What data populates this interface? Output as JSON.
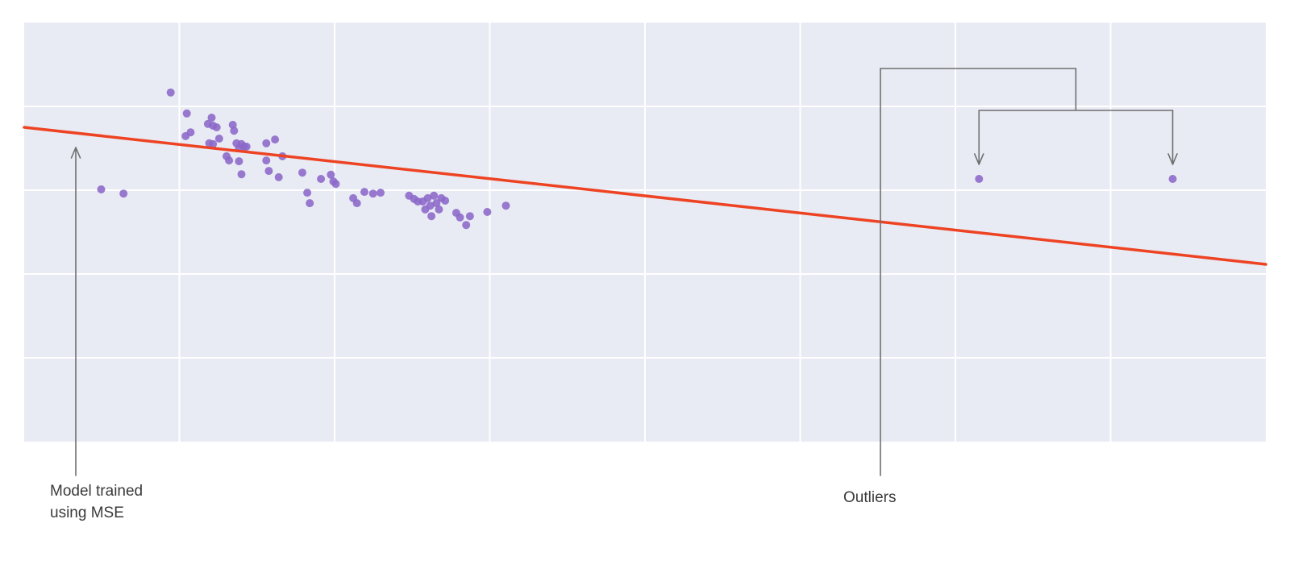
{
  "page": {
    "background": "#ffffff"
  },
  "labels": {
    "mse": "Model trained\nusing MSE",
    "outliers": "Outliers"
  },
  "chart_data": {
    "type": "scatter",
    "title": "",
    "xlabel": "",
    "ylabel": "",
    "axes_labeled": false,
    "xlim": [
      0,
      100
    ],
    "ylim": [
      0,
      100
    ],
    "plot_bg": "#e8ebf4",
    "grid": {
      "on": true,
      "color": "#ffffff",
      "x_interval": 12.5,
      "y_interval": 20
    },
    "legend": "none",
    "annotations": [
      "Model trained using MSE",
      "Outliers"
    ],
    "annotation_color": "#707070",
    "series": [
      {
        "name": "samples",
        "type": "scatter",
        "color": "#8b68c8",
        "marker_radius": 5,
        "points": [
          [
            11.8,
            83.3
          ],
          [
            13.1,
            78.3
          ],
          [
            13.4,
            73.8
          ],
          [
            13.0,
            72.9
          ],
          [
            15.1,
            77.3
          ],
          [
            14.8,
            75.8
          ],
          [
            15.2,
            75.4
          ],
          [
            15.5,
            75.0
          ],
          [
            14.9,
            71.2
          ],
          [
            15.2,
            71.0
          ],
          [
            15.7,
            72.3
          ],
          [
            16.3,
            68.1
          ],
          [
            16.5,
            67.1
          ],
          [
            16.8,
            75.6
          ],
          [
            16.9,
            74.2
          ],
          [
            17.1,
            71.2
          ],
          [
            17.3,
            70.0
          ],
          [
            17.5,
            71.0
          ],
          [
            17.7,
            70.4
          ],
          [
            17.3,
            66.9
          ],
          [
            17.5,
            63.8
          ],
          [
            17.9,
            70.4
          ],
          [
            19.5,
            71.2
          ],
          [
            19.5,
            67.1
          ],
          [
            19.7,
            64.6
          ],
          [
            20.2,
            72.1
          ],
          [
            20.5,
            63.1
          ],
          [
            20.8,
            68.1
          ],
          [
            22.4,
            64.2
          ],
          [
            22.8,
            59.4
          ],
          [
            23.0,
            56.9
          ],
          [
            23.9,
            62.7
          ],
          [
            24.7,
            63.7
          ],
          [
            24.9,
            62.1
          ],
          [
            25.1,
            61.5
          ],
          [
            26.5,
            58.1
          ],
          [
            26.8,
            56.9
          ],
          [
            27.4,
            59.6
          ],
          [
            28.1,
            59.2
          ],
          [
            28.7,
            59.4
          ],
          [
            31.0,
            58.7
          ],
          [
            31.4,
            57.9
          ],
          [
            31.7,
            57.3
          ],
          [
            32.1,
            57.3
          ],
          [
            32.3,
            55.4
          ],
          [
            32.5,
            58.1
          ],
          [
            32.7,
            56.3
          ],
          [
            32.8,
            53.8
          ],
          [
            33.0,
            58.7
          ],
          [
            33.2,
            56.9
          ],
          [
            33.4,
            55.4
          ],
          [
            33.6,
            58.1
          ],
          [
            33.9,
            57.5
          ],
          [
            34.8,
            54.6
          ],
          [
            35.1,
            53.5
          ],
          [
            35.6,
            51.7
          ],
          [
            35.9,
            53.8
          ],
          [
            37.3,
            54.8
          ],
          [
            38.8,
            56.3
          ],
          [
            6.2,
            60.2
          ],
          [
            8.0,
            59.2
          ]
        ]
      },
      {
        "name": "outliers",
        "type": "scatter",
        "color": "#8b68c8",
        "marker_radius": 5,
        "points": [
          [
            76.9,
            62.7
          ],
          [
            92.5,
            62.7
          ]
        ]
      },
      {
        "name": "regression-line",
        "type": "line",
        "color": "#ee4323",
        "width": 3.5,
        "points": [
          [
            0,
            75.0
          ],
          [
            100,
            42.3
          ]
        ]
      }
    ]
  }
}
